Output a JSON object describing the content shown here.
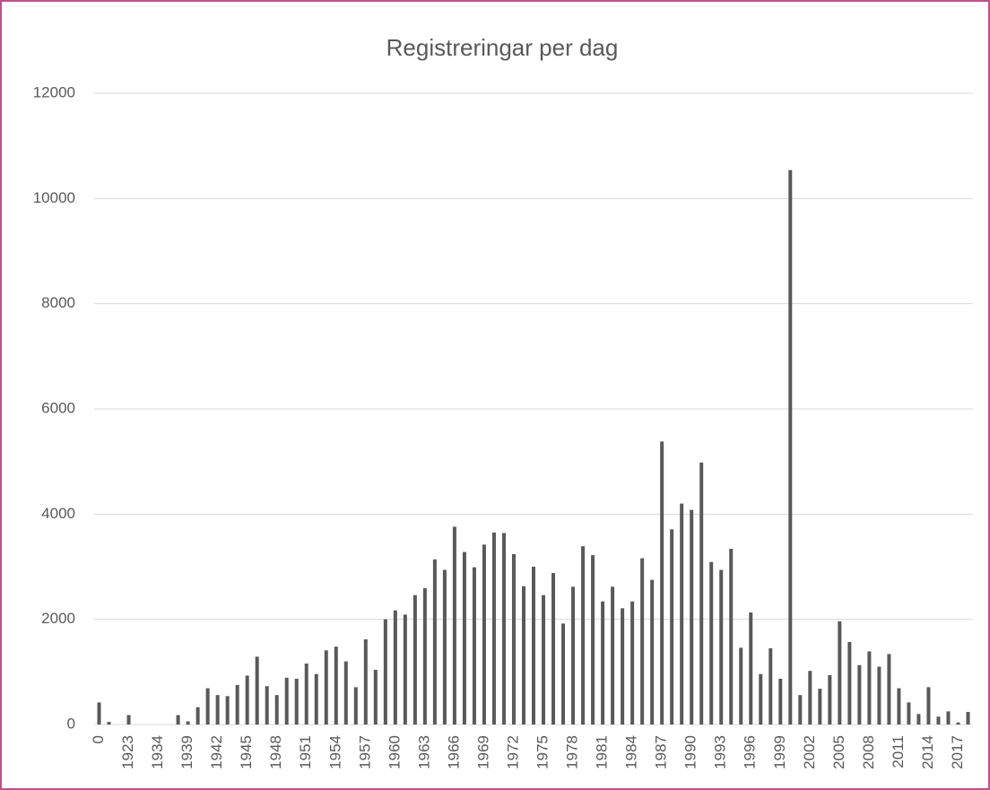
{
  "chart_data": {
    "type": "bar",
    "title": "Registreringar per dag",
    "categories": [
      "0",
      null,
      null,
      "1923",
      null,
      null,
      "1934",
      null,
      null,
      "1939",
      null,
      null,
      "1942",
      null,
      null,
      "1945",
      null,
      null,
      "1948",
      null,
      null,
      "1951",
      null,
      null,
      "1954",
      null,
      null,
      "1957",
      null,
      null,
      "1960",
      null,
      null,
      "1963",
      null,
      null,
      "1966",
      null,
      null,
      "1969",
      null,
      null,
      "1972",
      null,
      null,
      "1975",
      null,
      null,
      "1978",
      null,
      null,
      "1981",
      null,
      null,
      "1984",
      null,
      null,
      "1987",
      null,
      null,
      "1990",
      null,
      null,
      "1993",
      null,
      null,
      "1996",
      null,
      null,
      "1999",
      null,
      null,
      "2002",
      null,
      null,
      "2005",
      null,
      null,
      "2008",
      null,
      null,
      "2011",
      null,
      null,
      "2014",
      null,
      null,
      "2017",
      null
    ],
    "values": [
      420,
      50,
      0,
      180,
      0,
      0,
      0,
      0,
      180,
      60,
      330,
      690,
      560,
      540,
      750,
      930,
      1290,
      730,
      560,
      890,
      870,
      1160,
      960,
      1410,
      1480,
      1200,
      710,
      1620,
      1040,
      2000,
      2170,
      2090,
      2460,
      2590,
      3140,
      2940,
      3760,
      3280,
      2990,
      3420,
      3650,
      3640,
      3240,
      2630,
      3000,
      2460,
      2880,
      1920,
      2620,
      3390,
      3220,
      2340,
      2620,
      2210,
      2340,
      3160,
      2750,
      5380,
      3710,
      4200,
      4080,
      4980,
      3090,
      2940,
      3340,
      1460,
      2130,
      960,
      1450,
      870,
      10540,
      560,
      1020,
      680,
      940,
      1960,
      1570,
      1130,
      1390,
      1100,
      1340,
      690,
      420,
      200,
      710,
      150,
      250,
      40,
      240
    ],
    "color": "#595959",
    "ylim": [
      0,
      12000
    ],
    "yticks": [
      0,
      2000,
      4000,
      6000,
      8000,
      10000,
      12000
    ],
    "grid": true
  }
}
